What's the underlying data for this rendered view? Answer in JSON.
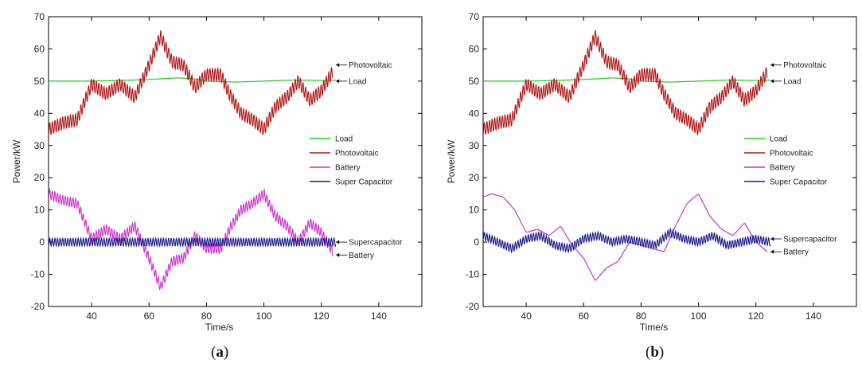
{
  "colors": {
    "load": "#22cc22",
    "photovoltaic": "#b01515",
    "battery": "#cc33cc",
    "supercapacitor": "#1a1a8c"
  },
  "panel_tags": [
    {
      "open": "(",
      "letter": "a",
      "close": ")"
    },
    {
      "open": "(",
      "letter": "b",
      "close": ")"
    }
  ],
  "chart_data": [
    {
      "type": "line",
      "xlabel": "Time/s",
      "ylabel": "Power/kW",
      "xlim": [
        25,
        155
      ],
      "ylim": [
        -20,
        70
      ],
      "xticks": [
        40,
        60,
        80,
        100,
        120,
        140
      ],
      "yticks": [
        -20,
        -10,
        0,
        10,
        20,
        30,
        40,
        50,
        60,
        70
      ],
      "grid": false,
      "legend_position": "center-right",
      "legend": [
        "Load",
        "Photovoltaic",
        "Battery",
        "Super Capacitor"
      ],
      "annotations": [
        {
          "label": "Photovoltaic",
          "x": 124,
          "y": 55
        },
        {
          "label": "Load",
          "x": 124,
          "y": 50
        },
        {
          "label": "Supercapacitor",
          "x": 124,
          "y": 0
        },
        {
          "label": "Battery",
          "x": 124,
          "y": -4
        }
      ],
      "series": [
        {
          "name": "Load",
          "key": "load",
          "ripple_amp": 0,
          "x": [
            25,
            40,
            50,
            60,
            70,
            75,
            80,
            90,
            100,
            110,
            120,
            125
          ],
          "y": [
            50,
            50,
            50.2,
            50.5,
            51,
            50.8,
            50,
            49.7,
            50,
            50.3,
            50.2,
            50.3
          ]
        },
        {
          "name": "Photovoltaic",
          "key": "photovoltaic",
          "ripple_amp": 2,
          "x": [
            25,
            30,
            35,
            40,
            45,
            50,
            55,
            60,
            64,
            68,
            72,
            76,
            80,
            85,
            88,
            92,
            96,
            100,
            104,
            108,
            112,
            116,
            120,
            124
          ],
          "y": [
            35,
            37,
            38,
            49,
            46,
            49,
            45,
            55,
            64,
            56,
            55,
            48,
            52,
            52,
            46,
            40,
            38,
            35,
            42,
            45,
            50,
            44,
            47,
            53
          ]
        },
        {
          "name": "Battery",
          "key": "battery",
          "ripple_amp": 1.5,
          "x": [
            25,
            30,
            35,
            40,
            45,
            50,
            55,
            60,
            64,
            68,
            72,
            76,
            80,
            85,
            88,
            92,
            96,
            100,
            104,
            108,
            112,
            116,
            120,
            124
          ],
          "y": [
            15,
            13,
            12,
            1,
            4,
            1,
            5,
            -5,
            -14,
            -6,
            -5,
            2,
            -2,
            -2,
            4,
            10,
            12,
            15,
            8,
            5,
            0,
            6,
            3,
            -3
          ]
        },
        {
          "name": "Super Capacitor",
          "key": "supercapacitor",
          "ripple_amp": 1.2,
          "x": [
            25,
            40,
            60,
            80,
            100,
            120,
            125
          ],
          "y": [
            0,
            0,
            0,
            0,
            0,
            0,
            0
          ]
        }
      ]
    },
    {
      "type": "line",
      "xlabel": "Time/s",
      "ylabel": "Power/kW",
      "xlim": [
        25,
        155
      ],
      "ylim": [
        -20,
        70
      ],
      "xticks": [
        40,
        60,
        80,
        100,
        120,
        140
      ],
      "yticks": [
        -20,
        -10,
        0,
        10,
        20,
        30,
        40,
        50,
        60,
        70
      ],
      "grid": false,
      "legend_position": "center-right",
      "legend": [
        "Load",
        "Photovoltaic",
        "Battery",
        "Super Capacitor"
      ],
      "annotations": [
        {
          "label": "Photovoltaic",
          "x": 124,
          "y": 55
        },
        {
          "label": "Load",
          "x": 124,
          "y": 50
        },
        {
          "label": "Supercapacitor",
          "x": 124,
          "y": 1
        },
        {
          "label": "Battery",
          "x": 124,
          "y": -3
        }
      ],
      "series": [
        {
          "name": "Load",
          "key": "load",
          "ripple_amp": 0,
          "x": [
            25,
            40,
            50,
            60,
            70,
            75,
            80,
            90,
            100,
            110,
            120,
            125
          ],
          "y": [
            50,
            50,
            50.2,
            50.5,
            51,
            50.8,
            50,
            49.7,
            50,
            50.3,
            50.2,
            50.3
          ]
        },
        {
          "name": "Photovoltaic",
          "key": "photovoltaic",
          "ripple_amp": 2,
          "x": [
            25,
            30,
            35,
            40,
            45,
            50,
            55,
            60,
            64,
            68,
            72,
            76,
            80,
            85,
            88,
            92,
            96,
            100,
            104,
            108,
            112,
            116,
            120,
            124
          ],
          "y": [
            35,
            37,
            38,
            49,
            46,
            49,
            45,
            55,
            64,
            56,
            55,
            48,
            52,
            52,
            46,
            40,
            38,
            35,
            42,
            45,
            50,
            44,
            47,
            53
          ]
        },
        {
          "name": "Battery",
          "key": "battery",
          "ripple_amp": 0,
          "x": [
            25,
            28,
            32,
            36,
            40,
            44,
            48,
            52,
            56,
            60,
            64,
            68,
            72,
            76,
            80,
            84,
            88,
            92,
            96,
            100,
            104,
            108,
            112,
            116,
            120,
            124
          ],
          "y": [
            14,
            15,
            14,
            10,
            3,
            4,
            2,
            5,
            -1,
            -5,
            -12,
            -8,
            -6,
            0,
            -1,
            -2,
            -3,
            5,
            12,
            15,
            8,
            4,
            2,
            6,
            0,
            -3
          ]
        },
        {
          "name": "Super Capacitor",
          "key": "supercapacitor",
          "ripple_amp": 1.2,
          "x": [
            25,
            30,
            35,
            40,
            45,
            50,
            55,
            60,
            65,
            70,
            75,
            80,
            85,
            90,
            95,
            100,
            105,
            110,
            115,
            120,
            125
          ],
          "y": [
            2,
            0,
            -2,
            1,
            2,
            -1,
            -2,
            1,
            2,
            0,
            1,
            0,
            -1,
            3,
            1,
            0,
            2,
            -1,
            0,
            1,
            0
          ]
        }
      ]
    }
  ]
}
